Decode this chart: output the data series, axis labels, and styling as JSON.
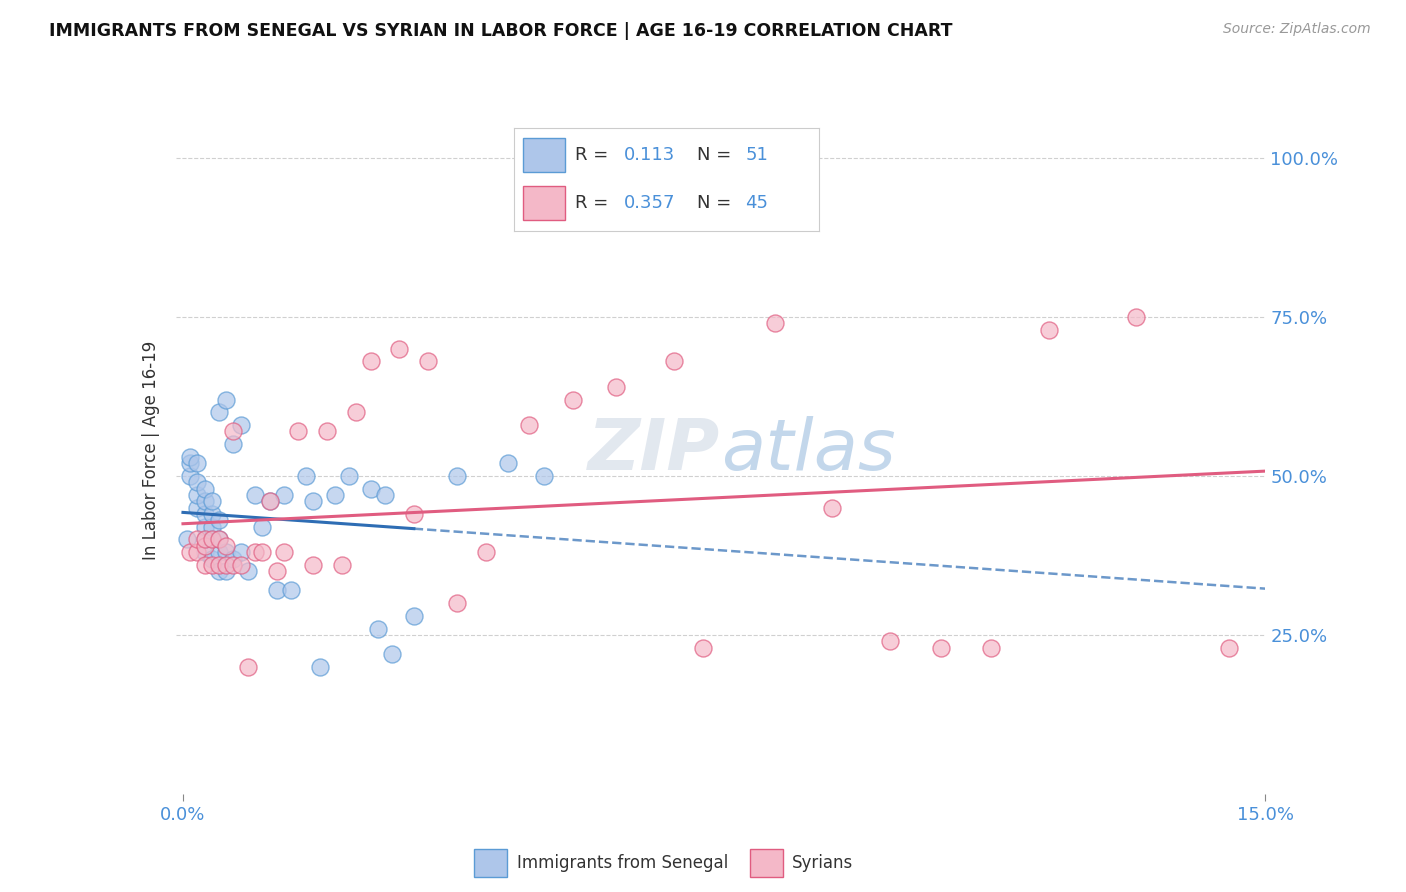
{
  "title": "IMMIGRANTS FROM SENEGAL VS SYRIAN IN LABOR FORCE | AGE 16-19 CORRELATION CHART",
  "source": "Source: ZipAtlas.com",
  "ylabel": "In Labor Force | Age 16-19",
  "yticks": [
    "25.0%",
    "50.0%",
    "75.0%",
    "100.0%"
  ],
  "ytick_positions": [
    0.25,
    0.5,
    0.75,
    1.0
  ],
  "xlim": [
    -0.001,
    0.15
  ],
  "ylim": [
    0.0,
    1.08
  ],
  "senegal_color": "#aec6ea",
  "senegal_edge_color": "#5b9bd5",
  "syrian_color": "#f4b8c8",
  "syrian_edge_color": "#e05c80",
  "senegal_line_color": "#2e6db4",
  "syrian_line_color": "#e05c80",
  "watermark": "ZIPatlas",
  "watermark_color": "#c8d8ee",
  "legend_R1": "0.113",
  "legend_N1": "51",
  "legend_R2": "0.357",
  "legend_N2": "45",
  "senegal_x": [
    0.0005,
    0.001,
    0.001,
    0.001,
    0.002,
    0.002,
    0.002,
    0.002,
    0.003,
    0.003,
    0.003,
    0.003,
    0.003,
    0.003,
    0.004,
    0.004,
    0.004,
    0.004,
    0.004,
    0.005,
    0.005,
    0.005,
    0.005,
    0.005,
    0.006,
    0.006,
    0.006,
    0.007,
    0.007,
    0.008,
    0.008,
    0.009,
    0.01,
    0.011,
    0.012,
    0.013,
    0.014,
    0.015,
    0.017,
    0.018,
    0.019,
    0.021,
    0.023,
    0.026,
    0.027,
    0.028,
    0.029,
    0.032,
    0.038,
    0.045,
    0.05
  ],
  "senegal_y": [
    0.4,
    0.5,
    0.52,
    0.53,
    0.45,
    0.47,
    0.49,
    0.52,
    0.38,
    0.4,
    0.42,
    0.44,
    0.46,
    0.48,
    0.37,
    0.4,
    0.42,
    0.44,
    0.46,
    0.35,
    0.38,
    0.4,
    0.43,
    0.6,
    0.35,
    0.38,
    0.62,
    0.37,
    0.55,
    0.38,
    0.58,
    0.35,
    0.47,
    0.42,
    0.46,
    0.32,
    0.47,
    0.32,
    0.5,
    0.46,
    0.2,
    0.47,
    0.5,
    0.48,
    0.26,
    0.47,
    0.22,
    0.28,
    0.5,
    0.52,
    0.5
  ],
  "syrian_x": [
    0.001,
    0.002,
    0.002,
    0.003,
    0.003,
    0.003,
    0.004,
    0.004,
    0.005,
    0.005,
    0.006,
    0.006,
    0.007,
    0.007,
    0.008,
    0.009,
    0.01,
    0.011,
    0.012,
    0.013,
    0.014,
    0.016,
    0.018,
    0.02,
    0.022,
    0.024,
    0.026,
    0.03,
    0.032,
    0.034,
    0.038,
    0.042,
    0.048,
    0.054,
    0.06,
    0.068,
    0.072,
    0.082,
    0.09,
    0.098,
    0.105,
    0.112,
    0.12,
    0.132,
    0.145
  ],
  "syrian_y": [
    0.38,
    0.38,
    0.4,
    0.36,
    0.39,
    0.4,
    0.36,
    0.4,
    0.36,
    0.4,
    0.36,
    0.39,
    0.36,
    0.57,
    0.36,
    0.2,
    0.38,
    0.38,
    0.46,
    0.35,
    0.38,
    0.57,
    0.36,
    0.57,
    0.36,
    0.6,
    0.68,
    0.7,
    0.44,
    0.68,
    0.3,
    0.38,
    0.58,
    0.62,
    0.64,
    0.68,
    0.23,
    0.74,
    0.45,
    0.24,
    0.23,
    0.23,
    0.73,
    0.75,
    0.23
  ],
  "background_color": "#ffffff",
  "grid_color": "#d0d0d0",
  "senegal_line_end_solid": 0.032,
  "senegal_line_start_dashed": 0.032
}
